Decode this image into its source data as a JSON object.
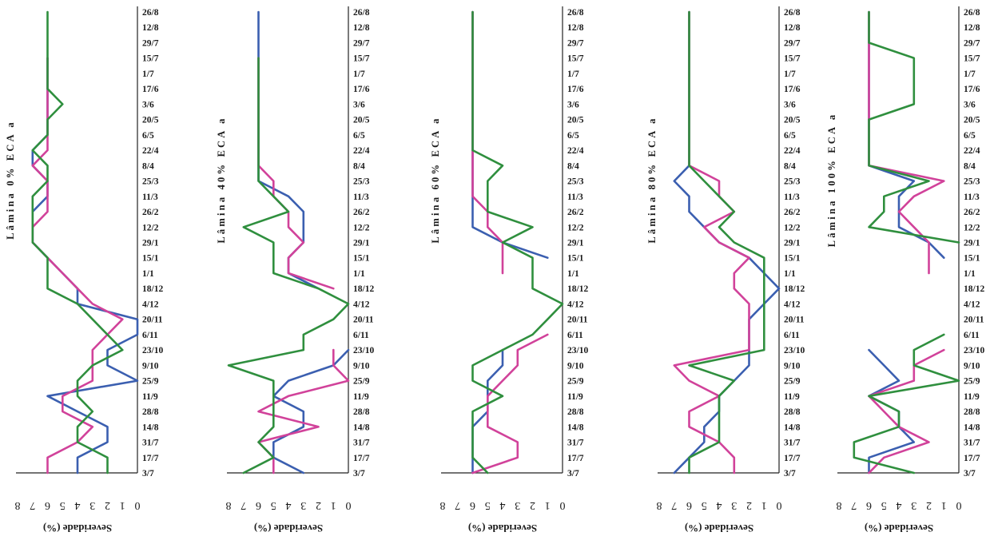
{
  "chart_data": [
    {
      "type": "line",
      "title": "Lâmina 0% ECA a",
      "ylabel": "Severidade (%)",
      "x": [
        "3/7",
        "17/7",
        "31/7",
        "14/8",
        "28/8",
        "11/9",
        "25/9",
        "9/10",
        "23/10",
        "6/11",
        "20/11",
        "4/12",
        "18/12",
        "1/1",
        "15/1",
        "29/1",
        "12/2",
        "26/2",
        "11/3",
        "25/3",
        "8/4",
        "22/4",
        "6/5",
        "20/5",
        "3/6",
        "17/6",
        "1/7",
        "15/7",
        "29/7",
        "12/8",
        "26/8"
      ],
      "ylim": [
        0,
        8
      ],
      "yticks": [
        8,
        7,
        6,
        5,
        4,
        3,
        2,
        1,
        0
      ],
      "series": [
        {
          "color": "#3b5fb0",
          "values": [
            4,
            4,
            2,
            2,
            4,
            6,
            0,
            2,
            2,
            0,
            0,
            4,
            4,
            5,
            6,
            7,
            7,
            7,
            6,
            6,
            7,
            7,
            6,
            6,
            6,
            6,
            6,
            6,
            null,
            null,
            null
          ]
        },
        {
          "color": "#d1429a",
          "values": [
            6,
            6,
            4,
            3,
            5,
            5,
            3,
            3,
            3,
            2,
            1,
            3,
            4,
            5,
            6,
            7,
            7,
            6,
            6,
            6,
            7,
            6,
            6,
            6,
            6,
            6,
            6,
            6,
            null,
            null,
            null
          ]
        },
        {
          "color": "#2f8f3e",
          "values": [
            2,
            2,
            4,
            4,
            3,
            4,
            4,
            3,
            1,
            2,
            3,
            4,
            6,
            6,
            6,
            7,
            7,
            7,
            7,
            6,
            6,
            7,
            6,
            6,
            5,
            6,
            6,
            6,
            6,
            6,
            6
          ]
        }
      ]
    },
    {
      "type": "line",
      "title": "Lâmina 40% ECA a",
      "ylabel": "Severidade (%)",
      "x": [
        "3/7",
        "17/7",
        "31/7",
        "14/8",
        "28/8",
        "11/9",
        "25/9",
        "9/10",
        "23/10",
        "6/11",
        "20/11",
        "4/12",
        "18/12",
        "1/1",
        "15/1",
        "29/1",
        "12/2",
        "26/2",
        "11/3",
        "25/3",
        "8/4",
        "22/4",
        "6/5",
        "20/5",
        "3/6",
        "17/6",
        "1/7",
        "15/7",
        "29/7",
        "12/8",
        "26/8"
      ],
      "ylim": [
        0,
        8
      ],
      "yticks": [
        8,
        7,
        6,
        5,
        4,
        3,
        2,
        1,
        0
      ],
      "series": [
        {
          "color": "#3b5fb0",
          "values": [
            3,
            5,
            5,
            3,
            3,
            5,
            4,
            1,
            0,
            null,
            null,
            null,
            2,
            4,
            4,
            3,
            3,
            3,
            4,
            6,
            6,
            6,
            6,
            6,
            6,
            6,
            6,
            6,
            6,
            6,
            6
          ]
        },
        {
          "color": "#d1429a",
          "values": [
            5,
            5,
            6,
            2,
            6,
            4,
            0,
            1,
            1,
            null,
            null,
            null,
            1,
            4,
            4,
            3,
            4,
            4,
            5,
            5,
            6,
            6,
            6,
            6,
            6,
            6,
            6,
            6,
            null,
            null,
            null
          ]
        },
        {
          "color": "#2f8f3e",
          "values": [
            7,
            5,
            6,
            5,
            5,
            5,
            5,
            8,
            3,
            3,
            1,
            0,
            2,
            5,
            5,
            5,
            7,
            4,
            5,
            6,
            6,
            6,
            6,
            6,
            6,
            6,
            6,
            6,
            null,
            null,
            null
          ]
        }
      ]
    },
    {
      "type": "line",
      "title": "Lâmina 60% ECA a",
      "ylabel": "Severidade (%)",
      "x": [
        "3/7",
        "17/7",
        "31/7",
        "14/8",
        "28/8",
        "11/9",
        "25/9",
        "9/10",
        "23/10",
        "6/11",
        "20/11",
        "4/12",
        "18/12",
        "1/1",
        "15/1",
        "29/1",
        "12/2",
        "26/2",
        "11/3",
        "25/3",
        "8/4",
        "22/4",
        "6/5",
        "20/5",
        "3/6",
        "17/6",
        "1/7",
        "15/7",
        "29/7",
        "12/8",
        "26/8"
      ],
      "ylim": [
        0,
        8
      ],
      "yticks": [
        8,
        7,
        6,
        5,
        4,
        3,
        2,
        1,
        0
      ],
      "series": [
        {
          "color": "#3b5fb0",
          "values": [
            6,
            6,
            6,
            6,
            5,
            5,
            5,
            4,
            4,
            null,
            null,
            null,
            null,
            null,
            1,
            4,
            6,
            6,
            6,
            6,
            6,
            6,
            6,
            6,
            6,
            6,
            6,
            6,
            6,
            6,
            6
          ]
        },
        {
          "color": "#d1429a",
          "values": [
            6,
            3,
            3,
            5,
            5,
            5,
            4,
            3,
            3,
            1,
            null,
            null,
            null,
            4,
            4,
            4,
            5,
            5,
            6,
            6,
            6,
            6,
            6,
            6,
            6,
            6,
            6,
            6,
            6,
            6,
            6
          ]
        },
        {
          "color": "#2f8f3e",
          "values": [
            5,
            6,
            6,
            6,
            6,
            4,
            6,
            6,
            4,
            2,
            1,
            0,
            2,
            2,
            2,
            4,
            2,
            5,
            5,
            5,
            4,
            6,
            6,
            6,
            6,
            6,
            6,
            6,
            6,
            6,
            6
          ]
        }
      ]
    },
    {
      "type": "line",
      "title": "Lâmina 80% ECA a",
      "ylabel": "Severidade (%)",
      "x": [
        "3/7",
        "17/7",
        "31/7",
        "14/8",
        "28/8",
        "11/9",
        "25/9",
        "9/10",
        "23/10",
        "6/11",
        "20/11",
        "4/12",
        "18/12",
        "1/1",
        "15/1",
        "29/1",
        "12/2",
        "26/2",
        "11/3",
        "25/3",
        "8/4",
        "22/4",
        "6/5",
        "20/5",
        "3/6",
        "17/6",
        "1/7",
        "15/7",
        "29/7",
        "12/8",
        "26/8"
      ],
      "ylim": [
        0,
        8
      ],
      "yticks": [
        8,
        7,
        6,
        5,
        4,
        3,
        2,
        1,
        0
      ],
      "series": [
        {
          "color": "#3b5fb0",
          "values": [
            7,
            6,
            5,
            5,
            4,
            4,
            3,
            2,
            2,
            2,
            2,
            1,
            0,
            1,
            2,
            4,
            5,
            6,
            6,
            7,
            6,
            6,
            6,
            6,
            6,
            6,
            6,
            6,
            6,
            6,
            6
          ]
        },
        {
          "color": "#d1429a",
          "values": [
            3,
            3,
            4,
            6,
            6,
            4,
            6,
            7,
            2,
            2,
            2,
            2,
            3,
            3,
            2,
            4,
            5,
            3,
            4,
            4,
            6,
            6,
            6,
            6,
            6,
            6,
            6,
            6,
            6,
            6,
            6
          ]
        },
        {
          "color": "#2f8f3e",
          "values": [
            6,
            6,
            4,
            4,
            4,
            4,
            3,
            6,
            1,
            1,
            1,
            1,
            1,
            1,
            1,
            3,
            4,
            3,
            4,
            5,
            6,
            6,
            6,
            6,
            6,
            6,
            6,
            6,
            6,
            6,
            6
          ]
        }
      ]
    },
    {
      "type": "line",
      "title": "Lâmina 100% ECA a",
      "ylabel": "Severidade (%)",
      "x": [
        "3/7",
        "17/7",
        "31/7",
        "14/8",
        "28/8",
        "11/9",
        "25/9",
        "9/10",
        "23/10",
        "6/11",
        "20/11",
        "4/12",
        "18/12",
        "1/1",
        "15/1",
        "29/1",
        "12/2",
        "26/2",
        "11/3",
        "25/3",
        "8/4",
        "22/4",
        "6/5",
        "20/5",
        "3/6",
        "17/6",
        "1/7",
        "15/7",
        "29/7",
        "12/8",
        "26/8"
      ],
      "ylim": [
        0,
        8
      ],
      "yticks": [
        8,
        7,
        6,
        5,
        4,
        3,
        2,
        1,
        0
      ],
      "series": [
        {
          "color": "#3b5fb0",
          "values": [
            6,
            6,
            3,
            4,
            4,
            6,
            4,
            5,
            6,
            null,
            null,
            null,
            null,
            null,
            1,
            2,
            4,
            4,
            4,
            3,
            6,
            6,
            6,
            6,
            6,
            6,
            6,
            6,
            6,
            6,
            6
          ]
        },
        {
          "color": "#d1429a",
          "values": [
            6,
            5,
            2,
            4,
            5,
            6,
            3,
            3,
            1,
            null,
            null,
            null,
            null,
            2,
            2,
            2,
            3,
            4,
            3,
            1,
            6,
            6,
            6,
            6,
            6,
            6,
            6,
            6,
            6,
            6,
            6
          ]
        },
        {
          "color": "#2f8f3e",
          "values": [
            3,
            7,
            7,
            4,
            4,
            6,
            0,
            3,
            3,
            1,
            null,
            null,
            null,
            null,
            null,
            0,
            6,
            5,
            5,
            2,
            6,
            6,
            6,
            6,
            3,
            3,
            3,
            3,
            6,
            6,
            6
          ]
        }
      ]
    }
  ]
}
